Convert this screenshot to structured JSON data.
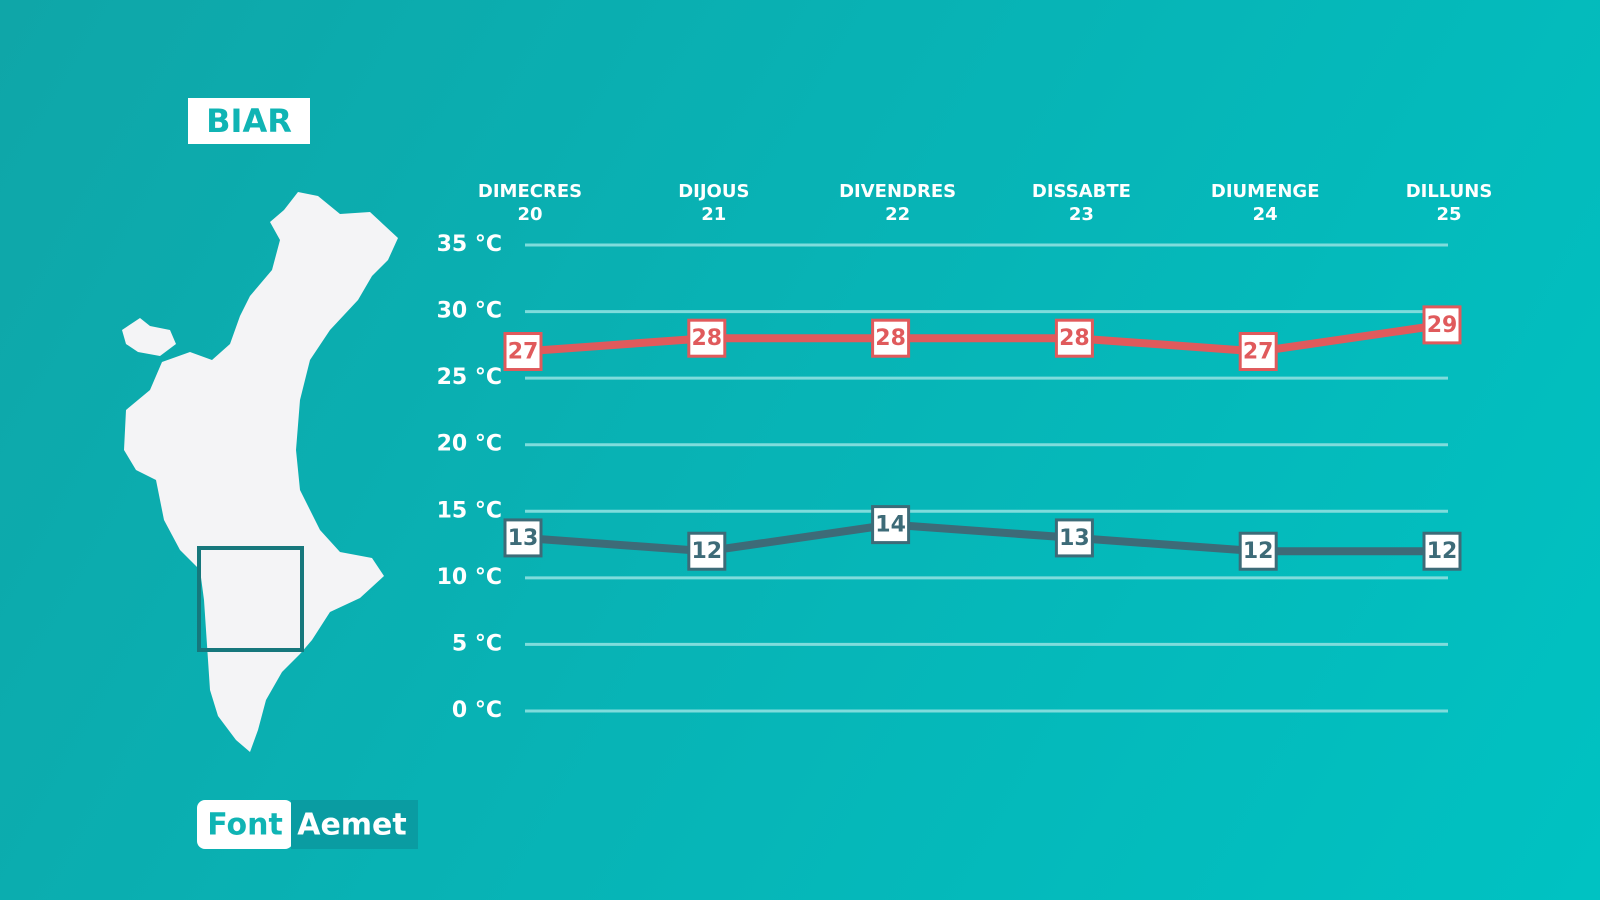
{
  "title": "BIAR",
  "source": {
    "label": "Font",
    "name": "Aemet"
  },
  "chart_data": {
    "type": "line",
    "categories": [
      "DIMECRES",
      "DIJOUS",
      "DIVENDRES",
      "DISSABTE",
      "DIUMENGE",
      "DILLUNS"
    ],
    "dates": [
      "20",
      "21",
      "22",
      "23",
      "24",
      "25"
    ],
    "series": [
      {
        "color": "#e05a5c",
        "values": [
          27,
          28,
          28,
          28,
          27,
          29
        ]
      },
      {
        "color": "#3d6b78",
        "values": [
          13,
          12,
          14,
          13,
          12,
          12
        ]
      }
    ],
    "ylim": [
      0,
      35
    ],
    "yticks": [
      {
        "value": 0,
        "label": "0 °C"
      },
      {
        "value": 5,
        "label": "5 °C"
      },
      {
        "value": 10,
        "label": "10 °C"
      },
      {
        "value": 15,
        "label": "15 °C"
      },
      {
        "value": 20,
        "label": "20 °C"
      },
      {
        "value": 25,
        "label": "25 °C"
      },
      {
        "value": 30,
        "label": "30 °C"
      },
      {
        "value": 35,
        "label": "35 °C"
      }
    ],
    "grid": true
  }
}
